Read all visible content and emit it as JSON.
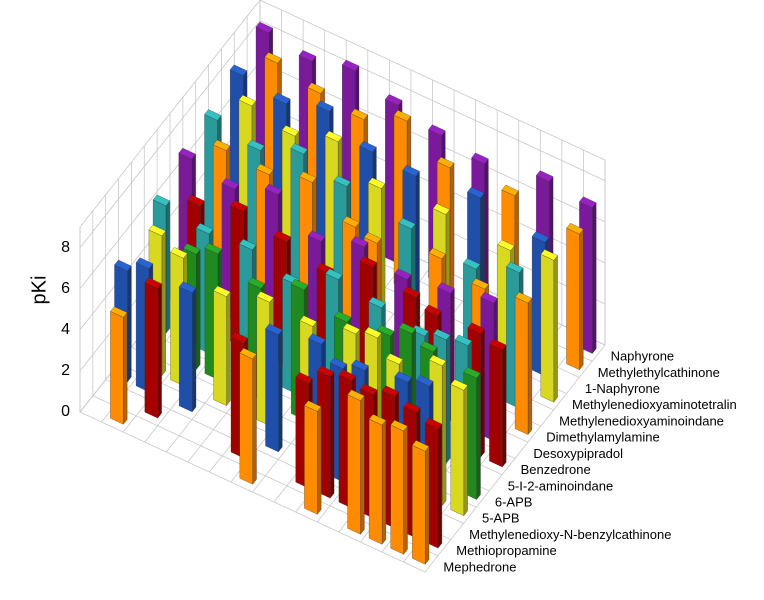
{
  "chart_data": {
    "type": "bar3d",
    "zlabel": "pKi",
    "zlim": [
      0,
      9
    ],
    "zticks": [
      0,
      2,
      4,
      6,
      8
    ],
    "grid": true,
    "categories": [
      null,
      null,
      null,
      null,
      null,
      null,
      null,
      null,
      null,
      null,
      null,
      null,
      null,
      null,
      null,
      null
    ],
    "series": [
      {
        "name": "Mephedrone",
        "color": "#ff8c00",
        "values": [
          null,
          5.2,
          null,
          null,
          null,
          null,
          null,
          6.1,
          null,
          null,
          5.0,
          null,
          6.5,
          5.8,
          6.0,
          5.5
        ]
      },
      {
        "name": "Methiopropamine",
        "color": "#a00000",
        "values": [
          null,
          null,
          6.3,
          null,
          null,
          null,
          5.6,
          null,
          null,
          5.1,
          5.9,
          6.2,
          6.0,
          6.4,
          6.1,
          5.8
        ]
      },
      {
        "name": "Methylenedioxy-N-benzylcathinone",
        "color": "#1f4fa8",
        "values": [
          5.4,
          6.0,
          null,
          5.8,
          null,
          null,
          null,
          5.7,
          null,
          6.2,
          5.5,
          5.9,
          null,
          6.3,
          6.6,
          null
        ]
      },
      {
        "name": "5-APB",
        "color": "#d8d820",
        "values": [
          null,
          6.8,
          6.2,
          null,
          5.3,
          null,
          6.0,
          null,
          5.8,
          null,
          6.4,
          6.7,
          5.9,
          null,
          6.8,
          6.1
        ]
      },
      {
        "name": "6-APB",
        "color": "#208a20",
        "values": [
          null,
          null,
          5.6,
          6.1,
          null,
          5.4,
          null,
          6.3,
          null,
          5.7,
          null,
          6.0,
          6.6,
          6.2,
          null,
          5.9
        ]
      },
      {
        "name": "5-I-2-aminoindane",
        "color": "#2a9a9a",
        "values": [
          6.2,
          null,
          5.8,
          null,
          6.0,
          null,
          5.3,
          null,
          6.5,
          null,
          6.1,
          null,
          5.7,
          6.0,
          6.2,
          null
        ]
      },
      {
        "name": "Benzedrone",
        "color": "#a00000",
        "values": [
          null,
          5.9,
          null,
          6.6,
          null,
          6.1,
          null,
          5.5,
          null,
          6.8,
          null,
          6.3,
          5.9,
          null,
          6.0,
          5.7
        ]
      },
      {
        "name": "Desoxypipradol",
        "color": "#7a1a9a",
        "values": [
          6.9,
          null,
          6.4,
          null,
          7.1,
          null,
          5.8,
          null,
          6.5,
          null,
          5.9,
          null,
          6.2,
          null,
          6.7,
          null
        ]
      },
      {
        "name": "Dimethylamylamine",
        "color": "#ff8c00",
        "values": [
          null,
          7.0,
          null,
          6.8,
          null,
          7.4,
          null,
          6.2,
          5.9,
          null,
          null,
          6.6,
          null,
          6.1,
          null,
          6.4
        ]
      },
      {
        "name": "Methylenedioxyaminoindane",
        "color": "#2a9a9a",
        "values": [
          7.2,
          null,
          6.7,
          null,
          7.5,
          null,
          6.9,
          null,
          null,
          6.3,
          null,
          null,
          5.8,
          null,
          6.6,
          null
        ]
      },
      {
        "name": "Methylenedioxyaminotetralin",
        "color": "#d8d820",
        "values": [
          null,
          7.6,
          null,
          7.1,
          null,
          7.8,
          null,
          6.5,
          null,
          null,
          6.7,
          null,
          null,
          6.4,
          null,
          6.9
        ]
      },
      {
        "name": "1-Naphyrone",
        "color": "#1f4fa8",
        "values": [
          7.8,
          null,
          7.4,
          null,
          8.0,
          null,
          7.0,
          null,
          6.8,
          null,
          null,
          7.2,
          null,
          null,
          6.5,
          null
        ]
      },
      {
        "name": "Methylethylcathinone",
        "color": "#ff8c00",
        "values": [
          null,
          8.1,
          null,
          7.6,
          null,
          7.3,
          null,
          8.2,
          null,
          6.9,
          null,
          null,
          7.0,
          null,
          null,
          6.6
        ]
      },
      {
        "name": "Naphyrone",
        "color": "#7a1a9a",
        "values": [
          8.3,
          null,
          7.9,
          null,
          8.4,
          null,
          7.7,
          null,
          7.2,
          null,
          6.8,
          null,
          null,
          7.4,
          null,
          7.1
        ]
      }
    ]
  }
}
